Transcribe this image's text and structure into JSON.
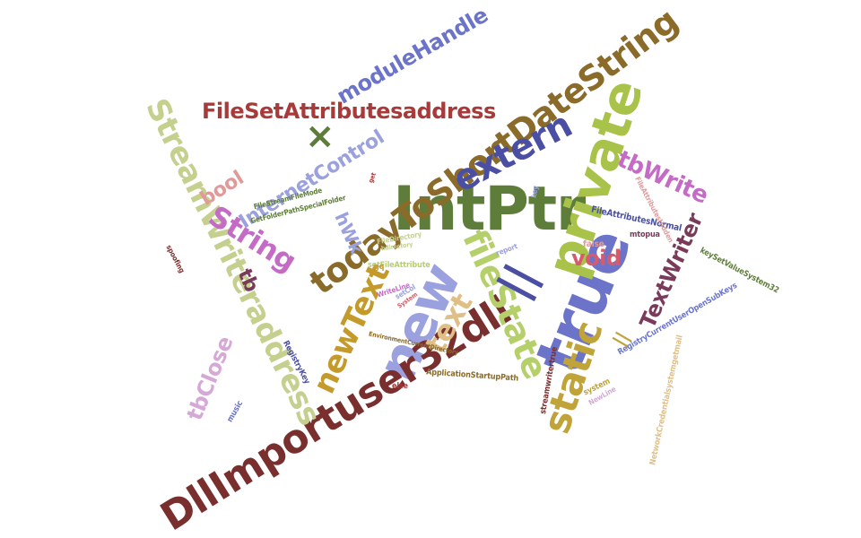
{
  "words": [
    {
      "id": "intptr",
      "text": "IntPtr",
      "color": "#5e7d3a"
    },
    {
      "id": "true",
      "text": "true",
      "color": "#6b74c9"
    },
    {
      "id": "private",
      "text": "private",
      "color": "#a8c24a"
    },
    {
      "id": "new",
      "text": "new",
      "color": "#9aa1de"
    },
    {
      "id": "dllimportuser32dll",
      "text": "DllImportuser32dll",
      "color": "#7a2f2f"
    },
    {
      "id": "streamwriteraddress",
      "text": "StreamWriteraddress",
      "color": "#c6d08e"
    },
    {
      "id": "todaytoshortdatestring",
      "text": "todayToShortDateString",
      "color": "#8a6b2a"
    },
    {
      "id": "filestate",
      "text": "fileState",
      "color": "#b5cf6b"
    },
    {
      "id": "extern",
      "text": "extern",
      "color": "#4a4fa3"
    },
    {
      "id": "static",
      "text": "static",
      "color": "#c0a43a"
    },
    {
      "id": "newtext",
      "text": "newText",
      "color": "#c49a2a"
    },
    {
      "id": "filesetattributesaddress",
      "text": "FileSetAttributesaddress",
      "color": "#a83a3a"
    },
    {
      "id": "modulehandle",
      "text": "moduleHandle",
      "color": "#6b74c9"
    },
    {
      "id": "internetcontrol",
      "text": "InternetControl",
      "color": "#9aa1de"
    },
    {
      "id": "string",
      "text": "String",
      "color": "#c46bc6"
    },
    {
      "id": "pipe",
      "text": "||",
      "color": "#4a4fa3"
    },
    {
      "id": "text",
      "text": "text",
      "color": "#e0bf86"
    },
    {
      "id": "textwriter",
      "text": "TextWriter",
      "color": "#7a3a5a"
    },
    {
      "id": "tbwrite",
      "text": "tbWrite",
      "color": "#c46bc6"
    },
    {
      "id": "tbclose",
      "text": "tbClose",
      "color": "#d6a8d6"
    },
    {
      "id": "void",
      "text": "void",
      "color": "#d65b6b"
    },
    {
      "id": "bool",
      "text": "bool",
      "color": "#e09a9a"
    },
    {
      "id": "times",
      "text": "×",
      "color": "#5e7d3a"
    },
    {
      "id": "hwk",
      "text": "hWk",
      "color": "#9aa1de"
    },
    {
      "id": "tb",
      "text": "tb",
      "color": "#7a3a5a"
    },
    {
      "id": "pipe2",
      "text": "||",
      "color": "#c0a43a"
    },
    {
      "id": "keysetvalue",
      "text": "keySetValueSystem32",
      "color": "#5e7d3a"
    },
    {
      "id": "regkeycurrentuser",
      "text": "RegistryCurrentUserOpenSubKeys",
      "color": "#6b74c9"
    },
    {
      "id": "netcred",
      "text": "NetworkCredentialsystemgetmail",
      "color": "#e0bf86"
    },
    {
      "id": "appstartup",
      "text": "ApplicationStartupPath",
      "color": "#8a6b2a"
    },
    {
      "id": "streamwritertrue",
      "text": "streamwritertrue",
      "color": "#7a2f2f"
    },
    {
      "id": "getfolder",
      "text": "GetFolderPathSpecialFolder",
      "color": "#5e7d3a"
    },
    {
      "id": "fileattributes",
      "text": "FileAttributesNormal",
      "color": "#4a4fa3"
    },
    {
      "id": "filedirectory",
      "text": "FileDirectory",
      "color": "#c6d08e"
    },
    {
      "id": "else",
      "text": "else",
      "color": "#a83a3a"
    },
    {
      "id": "music",
      "text": "music",
      "color": "#6b74c9"
    },
    {
      "id": "false",
      "text": "false",
      "color": "#e09a9a"
    },
    {
      "id": "registrykey",
      "text": "RegistryKey",
      "color": "#4a4fa3"
    },
    {
      "id": "system",
      "text": "system",
      "color": "#c0a43a"
    },
    {
      "id": "setfile",
      "text": "setFileAttribute",
      "color": "#b5cf6b"
    },
    {
      "id": "keyvalue",
      "text": "key",
      "color": "#9aa1de"
    },
    {
      "id": "spoofing",
      "text": "spoofing",
      "color": "#7a2f2f"
    },
    {
      "id": "writeline",
      "text": "WriteLine",
      "color": "#c46bc6"
    },
    {
      "id": "reportline",
      "text": "report",
      "color": "#9aa1de"
    },
    {
      "id": "mtopua",
      "text": "mtopua",
      "color": "#7a3a5a"
    },
    {
      "id": "fileattr2",
      "text": "FileAttributesHidden",
      "color": "#e09a9a"
    },
    {
      "id": "get",
      "text": "get",
      "color": "#a83a3a"
    },
    {
      "id": "streamfile",
      "text": "FileStreamFileMode",
      "color": "#5e7d3a"
    },
    {
      "id": "gq",
      "text": "gq",
      "color": "#c49a2a"
    },
    {
      "id": "setcol",
      "text": "setCol",
      "color": "#9aa1de"
    },
    {
      "id": "e1",
      "text": "System",
      "color": "#d65b6b"
    },
    {
      "id": "env",
      "text": "EnvironmentCurrentDirectory",
      "color": "#8a6b2a"
    },
    {
      "id": "hdirectory",
      "text": "hdirectory",
      "color": "#c6d08e"
    },
    {
      "id": "newline",
      "text": "NewLine",
      "color": "#d6a8d6"
    }
  ]
}
